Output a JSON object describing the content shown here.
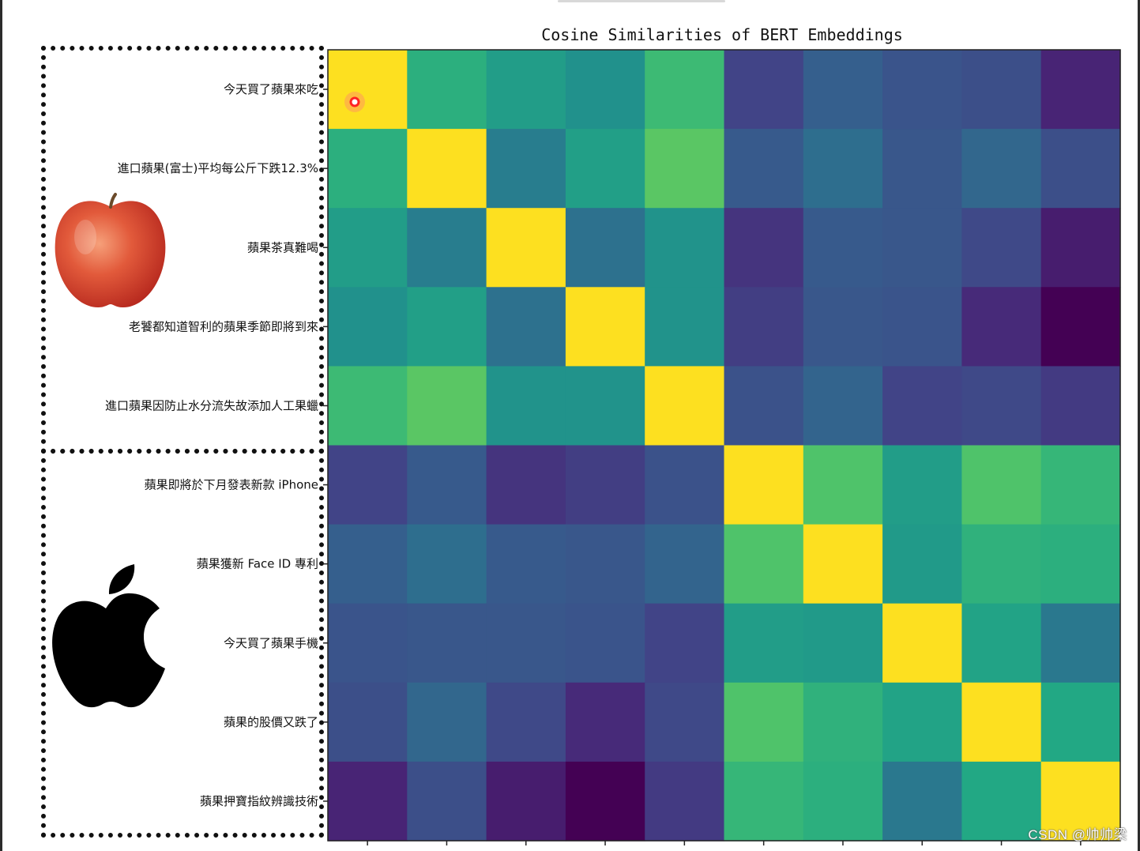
{
  "watermark": "CSDN @帅帅梁",
  "chart_data": {
    "type": "heatmap",
    "title": "Cosine Similarities of BERT Embeddings",
    "row_labels": [
      "今天買了蘋果來吃",
      "進口蘋果(富士)平均每公斤下跌12.3%",
      "蘋果茶真難喝",
      "老饕都知道智利的蘋果季節即將到來",
      "進口蘋果因防止水分流失故添加人工果蠟",
      "蘋果即將於下月發表新款 iPhone",
      "蘋果獲新 Face ID 專利",
      "今天買了蘋果手機",
      "蘋果的股價又跌了",
      "蘋果押寶指紋辨識技術"
    ],
    "colormap": "viridis",
    "grid": false,
    "values": [
      [
        1.0,
        0.63,
        0.55,
        0.5,
        0.68,
        0.2,
        0.3,
        0.26,
        0.24,
        0.1
      ],
      [
        0.63,
        1.0,
        0.42,
        0.56,
        0.74,
        0.28,
        0.36,
        0.27,
        0.33,
        0.24
      ],
      [
        0.55,
        0.42,
        1.0,
        0.37,
        0.51,
        0.15,
        0.28,
        0.27,
        0.22,
        0.08
      ],
      [
        0.5,
        0.56,
        0.37,
        1.0,
        0.51,
        0.18,
        0.27,
        0.26,
        0.12,
        0.0
      ],
      [
        0.68,
        0.74,
        0.51,
        0.51,
        1.0,
        0.25,
        0.32,
        0.2,
        0.22,
        0.17
      ],
      [
        0.2,
        0.28,
        0.15,
        0.18,
        0.25,
        1.0,
        0.72,
        0.55,
        0.72,
        0.66
      ],
      [
        0.3,
        0.36,
        0.28,
        0.27,
        0.32,
        0.72,
        1.0,
        0.54,
        0.64,
        0.63
      ],
      [
        0.26,
        0.27,
        0.27,
        0.26,
        0.2,
        0.55,
        0.54,
        1.0,
        0.58,
        0.4
      ],
      [
        0.24,
        0.33,
        0.22,
        0.12,
        0.22,
        0.72,
        0.64,
        0.58,
        1.0,
        0.6
      ],
      [
        0.1,
        0.24,
        0.08,
        0.0,
        0.17,
        0.66,
        0.63,
        0.4,
        0.6,
        1.0
      ]
    ]
  },
  "illustrations": [
    {
      "name": "red-apple-icon"
    },
    {
      "name": "apple-logo-icon"
    }
  ],
  "cursor_marker": {
    "row": 0,
    "col": 0,
    "color": "#ff2222"
  }
}
